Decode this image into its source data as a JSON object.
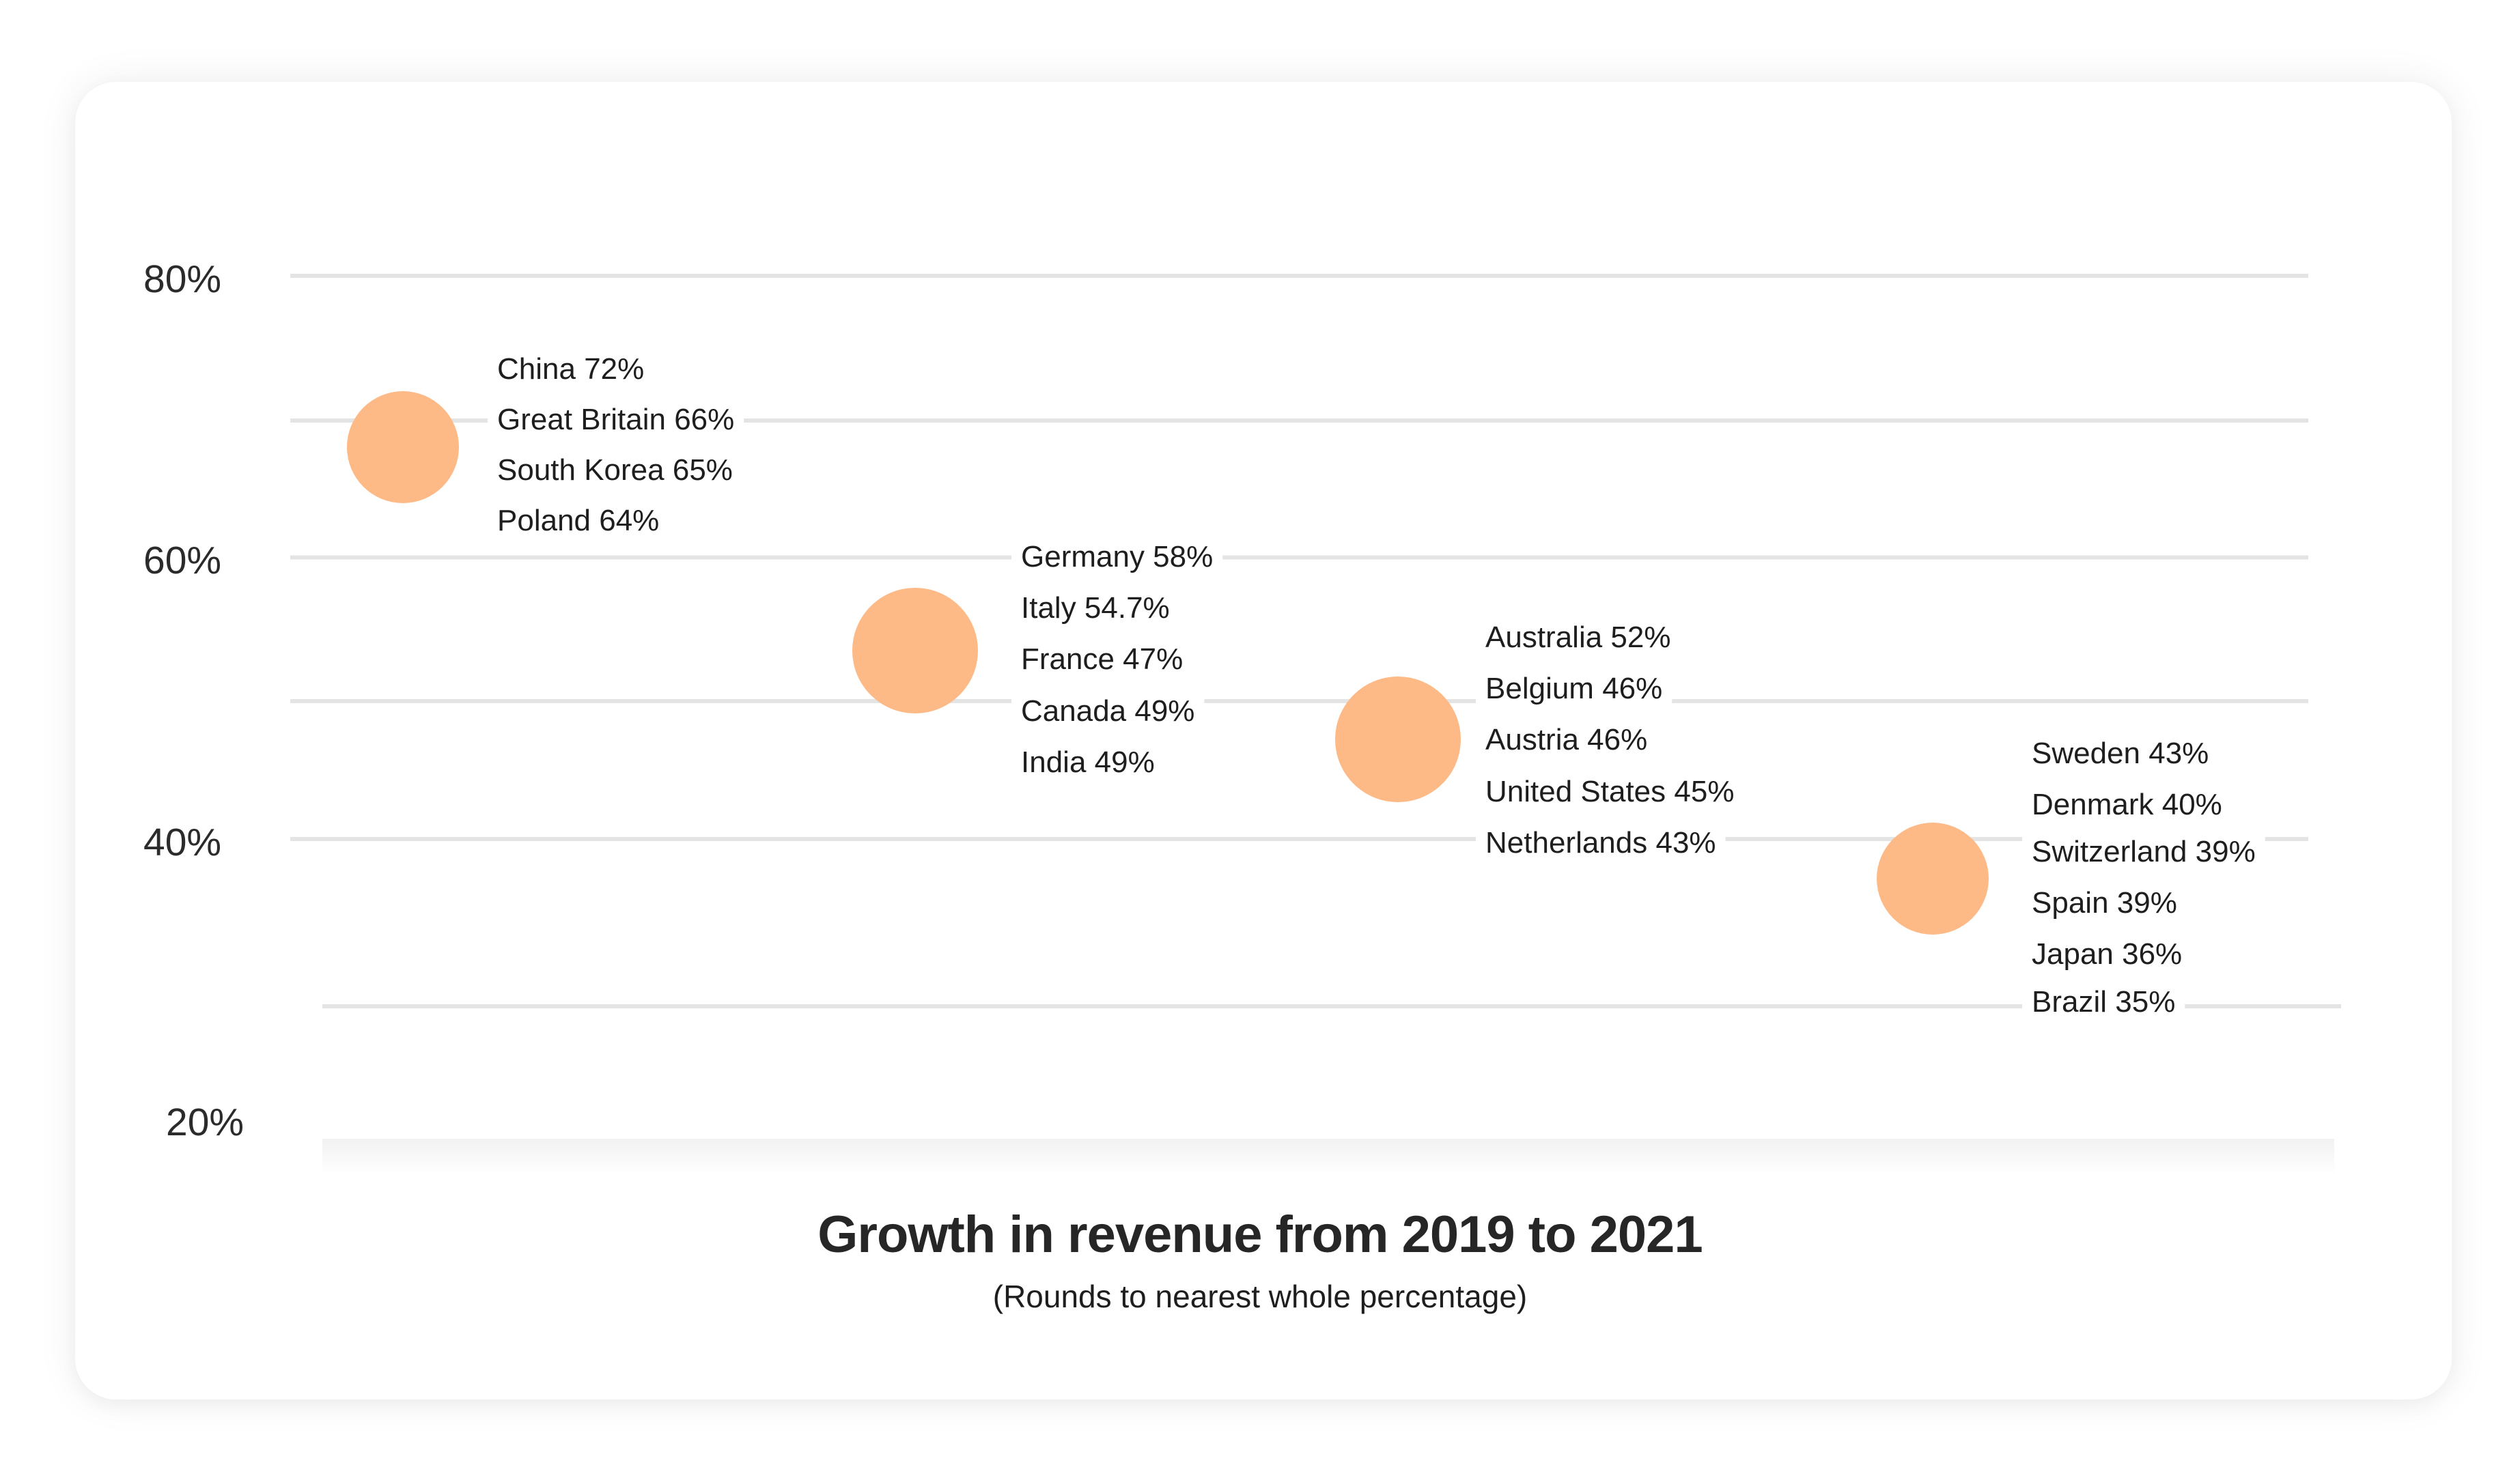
{
  "chart_data": {
    "type": "scatter",
    "title": "Growth in revenue from 2019 to 2021",
    "subtitle": "(Rounds to nearest whole percentage)",
    "y_ticks": [
      "80%",
      "60%",
      "40%",
      "20%"
    ],
    "y_tick_values": [
      80,
      60,
      40,
      20
    ],
    "ylim": [
      20,
      80
    ],
    "grid": true,
    "marker_color": "#fdb986",
    "gridline_color": "#e4e4e4",
    "groups": [
      {
        "y": 68.5,
        "labels": [
          "China 72%",
          "Great Britain 66%",
          "South Korea 65%",
          "Poland 64%"
        ]
      },
      {
        "y": 54,
        "labels": [
          "Germany 58%",
          "Italy 54.7%",
          "France 47%",
          "Canada 49%",
          "India 49%"
        ]
      },
      {
        "y": 47.5,
        "labels": [
          "Australia 52%",
          "Belgium 46%",
          "Austria 46%",
          "United States 45%",
          "Netherlands 43%"
        ]
      },
      {
        "y": 37.5,
        "labels": [
          "Sweden 43%",
          "Denmark 40%",
          "Switzerland 39%",
          "Spain 39%",
          "Japan 36%",
          "Brazil 35%"
        ]
      }
    ]
  }
}
